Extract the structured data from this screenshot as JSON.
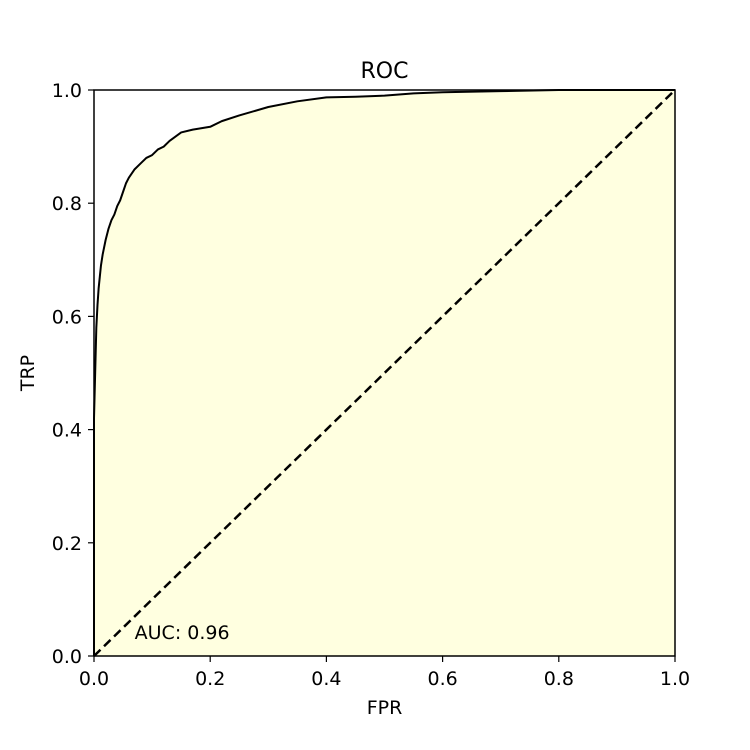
{
  "chart_data": {
    "type": "area",
    "title": "ROC",
    "xlabel": "FPR",
    "ylabel": "TRP",
    "xlim": [
      0.0,
      1.0
    ],
    "ylim": [
      0.0,
      1.0
    ],
    "xticks": [
      "0.0",
      "0.2",
      "0.4",
      "0.6",
      "0.8",
      "1.0"
    ],
    "yticks": [
      "0.0",
      "0.2",
      "0.4",
      "0.6",
      "0.8",
      "1.0"
    ],
    "xtick_values": [
      0.0,
      0.2,
      0.4,
      0.6,
      0.8,
      1.0
    ],
    "ytick_values": [
      0.0,
      0.2,
      0.4,
      0.6,
      0.8,
      1.0
    ],
    "grid": false,
    "fill_color": "#ffffe0",
    "curve_color": "#000000",
    "diagonal_color": "#000000",
    "series": [
      {
        "x": [
          0.0,
          0.0,
          0.002,
          0.004,
          0.006,
          0.008,
          0.01,
          0.012,
          0.015,
          0.02,
          0.025,
          0.03,
          0.035,
          0.04,
          0.045,
          0.05,
          0.055,
          0.06,
          0.07,
          0.08,
          0.09,
          0.1,
          0.11,
          0.12,
          0.13,
          0.15,
          0.17,
          0.2,
          0.22,
          0.25,
          0.3,
          0.35,
          0.4,
          0.45,
          0.5,
          0.55,
          0.6,
          0.7,
          0.8,
          0.82,
          0.9,
          1.0
        ],
        "y": [
          0.0,
          0.42,
          0.5,
          0.58,
          0.62,
          0.65,
          0.67,
          0.69,
          0.71,
          0.735,
          0.755,
          0.77,
          0.78,
          0.795,
          0.805,
          0.82,
          0.835,
          0.845,
          0.86,
          0.87,
          0.88,
          0.885,
          0.895,
          0.9,
          0.91,
          0.925,
          0.93,
          0.935,
          0.945,
          0.955,
          0.97,
          0.98,
          0.987,
          0.988,
          0.99,
          0.994,
          0.996,
          0.998,
          1.0,
          1.0,
          1.0,
          1.0
        ]
      }
    ],
    "diagonal": {
      "x": [
        0.0,
        1.0
      ],
      "y": [
        0.0,
        1.0
      ]
    },
    "annotation": {
      "text": "AUC: 0.96",
      "x": 0.07,
      "y": 0.03
    }
  }
}
